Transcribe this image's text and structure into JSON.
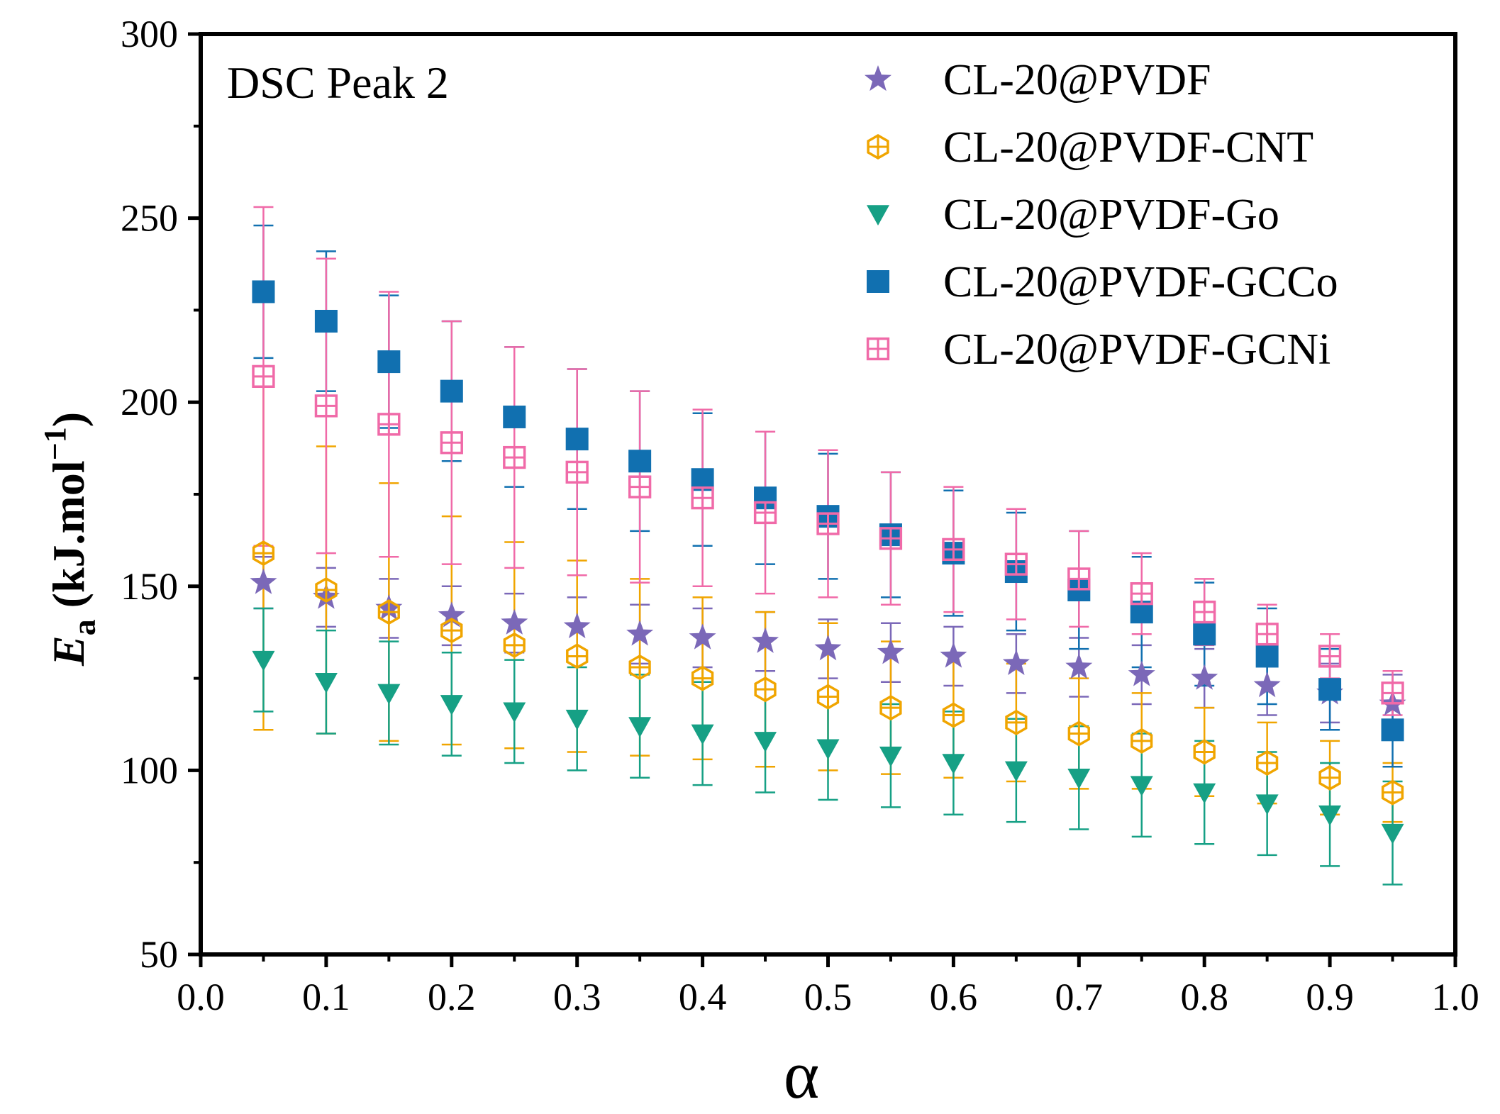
{
  "chart_data": {
    "type": "scatter",
    "annotation": "DSC Peak 2",
    "xlabel": "α",
    "ylabel_italic": "E",
    "ylabel_sub": "a",
    "ylabel_rest": " (kJ.mol",
    "ylabel_sup": "−1",
    "ylabel_close": ")",
    "xlim": [
      0.0,
      1.0
    ],
    "ylim": [
      50,
      300
    ],
    "xticks": [
      "0.0",
      "0.1",
      "0.2",
      "0.3",
      "0.4",
      "0.5",
      "0.6",
      "0.7",
      "0.8",
      "0.9",
      "1.0"
    ],
    "yticks": [
      "50",
      "100",
      "150",
      "200",
      "250",
      "300"
    ],
    "x": [
      0.05,
      0.1,
      0.15,
      0.2,
      0.25,
      0.3,
      0.35,
      0.4,
      0.45,
      0.5,
      0.55,
      0.6,
      0.65,
      0.7,
      0.75,
      0.8,
      0.85,
      0.9,
      0.95
    ],
    "legend_position": "top-right",
    "series": [
      {
        "name": "CL-20@PVDF",
        "marker": "star",
        "color": "#7b68b8",
        "values": [
          151,
          147,
          144,
          142,
          140,
          139,
          137,
          136,
          135,
          133,
          132,
          131,
          129,
          128,
          126,
          125,
          123,
          121,
          118
        ],
        "err": [
          7,
          8,
          8,
          8,
          8,
          8,
          8,
          8,
          8,
          8,
          8,
          8,
          8,
          8,
          8,
          8,
          8,
          8,
          8
        ]
      },
      {
        "name": "CL-20@PVDF-CNT",
        "marker": "hex-open",
        "color": "#f0a500",
        "values": [
          159,
          149,
          143,
          138,
          134,
          131,
          128,
          125,
          122,
          120,
          117,
          115,
          113,
          110,
          108,
          105,
          102,
          98,
          94
        ],
        "err": [
          48,
          39,
          35,
          31,
          28,
          26,
          24,
          22,
          21,
          20,
          18,
          17,
          16,
          15,
          13,
          12,
          11,
          10,
          8
        ]
      },
      {
        "name": "CL-20@PVDF-Go",
        "marker": "triangle-down",
        "color": "#16a085",
        "values": [
          130,
          124,
          121,
          118,
          116,
          114,
          112,
          110,
          108,
          106,
          104,
          102,
          100,
          98,
          96,
          94,
          91,
          88,
          83
        ],
        "err": [
          14,
          14,
          14,
          14,
          14,
          14,
          14,
          14,
          14,
          14,
          14,
          14,
          14,
          14,
          14,
          14,
          14,
          14,
          14
        ]
      },
      {
        "name": "CL-20@PVDF-GCCo",
        "marker": "square",
        "color": "#1170b0",
        "values": [
          230,
          222,
          211,
          203,
          196,
          190,
          184,
          179,
          174,
          169,
          164,
          159,
          154,
          149,
          143,
          137,
          131,
          122,
          111
        ],
        "err": [
          18,
          19,
          18,
          19,
          19,
          19,
          19,
          18,
          18,
          17,
          17,
          17,
          16,
          16,
          15,
          14,
          13,
          11,
          10
        ]
      },
      {
        "name": "CL-20@PVDF-GCNi",
        "marker": "square-plus",
        "color": "#f06aa8",
        "values": [
          207,
          199,
          194,
          189,
          185,
          181,
          177,
          174,
          170,
          167,
          163,
          160,
          156,
          152,
          148,
          143,
          137,
          131,
          121
        ],
        "err": [
          46,
          40,
          36,
          33,
          30,
          28,
          26,
          24,
          22,
          20,
          18,
          17,
          15,
          13,
          11,
          9,
          8,
          6,
          6
        ]
      }
    ]
  }
}
